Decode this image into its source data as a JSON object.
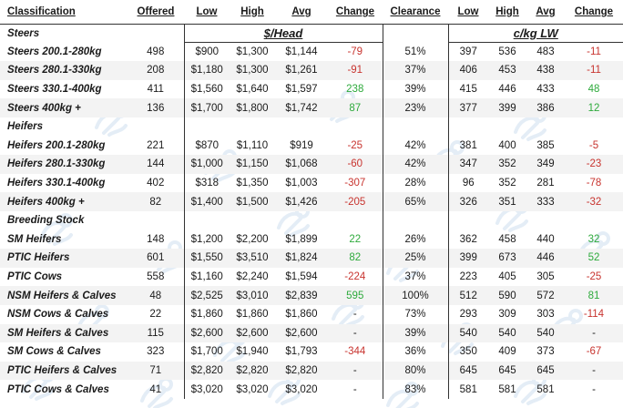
{
  "headers": {
    "classification": "Classification",
    "offered": "Offered",
    "low": "Low",
    "high": "High",
    "avg": "Avg",
    "change": "Change",
    "clearance": "Clearance",
    "low2": "Low",
    "high2": "High",
    "avg2": "Avg",
    "change2": "Change"
  },
  "units": {
    "per_head": "$/Head",
    "per_kg": "c/kg LW"
  },
  "sections": [
    {
      "title": "Steers",
      "rows": [
        {
          "name": "Steers 200.1-280kg",
          "offered": "498",
          "low": "$900",
          "high": "$1,300",
          "avg": "$1,144",
          "change": "-79",
          "change_dir": "neg",
          "clearance": "51%",
          "low_c": "397",
          "high_c": "536",
          "avg_c": "483",
          "change_c": "-11",
          "change_c_dir": "neg"
        },
        {
          "name": "Steers 280.1-330kg",
          "offered": "208",
          "low": "$1,180",
          "high": "$1,300",
          "avg": "$1,261",
          "change": "-91",
          "change_dir": "neg",
          "clearance": "37%",
          "low_c": "406",
          "high_c": "453",
          "avg_c": "438",
          "change_c": "-11",
          "change_c_dir": "neg"
        },
        {
          "name": "Steers 330.1-400kg",
          "offered": "411",
          "low": "$1,560",
          "high": "$1,640",
          "avg": "$1,597",
          "change": "238",
          "change_dir": "pos",
          "clearance": "39%",
          "low_c": "415",
          "high_c": "446",
          "avg_c": "433",
          "change_c": "48",
          "change_c_dir": "pos"
        },
        {
          "name": "Steers 400kg +",
          "offered": "136",
          "low": "$1,700",
          "high": "$1,800",
          "avg": "$1,742",
          "change": "87",
          "change_dir": "pos",
          "clearance": "23%",
          "low_c": "377",
          "high_c": "399",
          "avg_c": "386",
          "change_c": "12",
          "change_c_dir": "pos"
        }
      ]
    },
    {
      "title": "Heifers",
      "rows": [
        {
          "name": "Heifers 200.1-280kg",
          "offered": "221",
          "low": "$870",
          "high": "$1,110",
          "avg": "$919",
          "change": "-25",
          "change_dir": "neg",
          "clearance": "42%",
          "low_c": "381",
          "high_c": "400",
          "avg_c": "385",
          "change_c": "-5",
          "change_c_dir": "neg"
        },
        {
          "name": "Heifers 280.1-330kg",
          "offered": "144",
          "low": "$1,000",
          "high": "$1,150",
          "avg": "$1,068",
          "change": "-60",
          "change_dir": "neg",
          "clearance": "42%",
          "low_c": "347",
          "high_c": "352",
          "avg_c": "349",
          "change_c": "-23",
          "change_c_dir": "neg"
        },
        {
          "name": "Heifers 330.1-400kg",
          "offered": "402",
          "low": "$318",
          "high": "$1,350",
          "avg": "$1,003",
          "change": "-307",
          "change_dir": "neg",
          "clearance": "28%",
          "low_c": "96",
          "high_c": "352",
          "avg_c": "281",
          "change_c": "-78",
          "change_c_dir": "neg"
        },
        {
          "name": "Heifers 400kg +",
          "offered": "82",
          "low": "$1,400",
          "high": "$1,500",
          "avg": "$1,426",
          "change": "-205",
          "change_dir": "neg",
          "clearance": "65%",
          "low_c": "326",
          "high_c": "351",
          "avg_c": "333",
          "change_c": "-32",
          "change_c_dir": "neg"
        }
      ]
    },
    {
      "title": "Breeding Stock",
      "rows": [
        {
          "name": "SM Heifers",
          "offered": "148",
          "low": "$1,200",
          "high": "$2,200",
          "avg": "$1,899",
          "change": "22",
          "change_dir": "pos",
          "clearance": "26%",
          "low_c": "362",
          "high_c": "458",
          "avg_c": "440",
          "change_c": "32",
          "change_c_dir": "pos"
        },
        {
          "name": "PTIC Heifers",
          "offered": "601",
          "low": "$1,550",
          "high": "$3,510",
          "avg": "$1,824",
          "change": "82",
          "change_dir": "pos",
          "clearance": "25%",
          "low_c": "399",
          "high_c": "673",
          "avg_c": "446",
          "change_c": "52",
          "change_c_dir": "pos"
        },
        {
          "name": "PTIC Cows",
          "offered": "558",
          "low": "$1,160",
          "high": "$2,240",
          "avg": "$1,594",
          "change": "-224",
          "change_dir": "neg",
          "clearance": "37%",
          "low_c": "223",
          "high_c": "405",
          "avg_c": "305",
          "change_c": "-25",
          "change_c_dir": "neg"
        },
        {
          "name": "NSM Heifers & Calves",
          "offered": "48",
          "low": "$2,525",
          "high": "$3,010",
          "avg": "$2,839",
          "change": "595",
          "change_dir": "pos",
          "clearance": "100%",
          "low_c": "512",
          "high_c": "590",
          "avg_c": "572",
          "change_c": "81",
          "change_c_dir": "pos"
        },
        {
          "name": "NSM Cows & Calves",
          "offered": "22",
          "low": "$1,860",
          "high": "$1,860",
          "avg": "$1,860",
          "change": "-",
          "change_dir": "none",
          "clearance": "73%",
          "low_c": "293",
          "high_c": "309",
          "avg_c": "303",
          "change_c": "-114",
          "change_c_dir": "neg"
        },
        {
          "name": "SM Heifers & Calves",
          "offered": "115",
          "low": "$2,600",
          "high": "$2,600",
          "avg": "$2,600",
          "change": "-",
          "change_dir": "none",
          "clearance": "39%",
          "low_c": "540",
          "high_c": "540",
          "avg_c": "540",
          "change_c": "-",
          "change_c_dir": "none"
        },
        {
          "name": "SM Cows & Calves",
          "offered": "323",
          "low": "$1,700",
          "high": "$1,940",
          "avg": "$1,793",
          "change": "-344",
          "change_dir": "neg",
          "clearance": "36%",
          "low_c": "350",
          "high_c": "409",
          "avg_c": "373",
          "change_c": "-67",
          "change_c_dir": "neg"
        },
        {
          "name": "PTIC Heifers & Calves",
          "offered": "71",
          "low": "$2,820",
          "high": "$2,820",
          "avg": "$2,820",
          "change": "-",
          "change_dir": "none",
          "clearance": "80%",
          "low_c": "645",
          "high_c": "645",
          "avg_c": "645",
          "change_c": "-",
          "change_c_dir": "none"
        },
        {
          "name": "PTIC Cows & Calves",
          "offered": "41",
          "low": "$3,020",
          "high": "$3,020",
          "avg": "$3,020",
          "change": "-",
          "change_dir": "none",
          "clearance": "83%",
          "low_c": "581",
          "high_c": "581",
          "avg_c": "581",
          "change_c": "-",
          "change_c_dir": "none"
        }
      ]
    }
  ],
  "colors": {
    "positive": "#2eaa3c",
    "negative": "#c8342f",
    "watermark": "#9fc0e0"
  },
  "watermark_icon": "cattle-brand-logo"
}
